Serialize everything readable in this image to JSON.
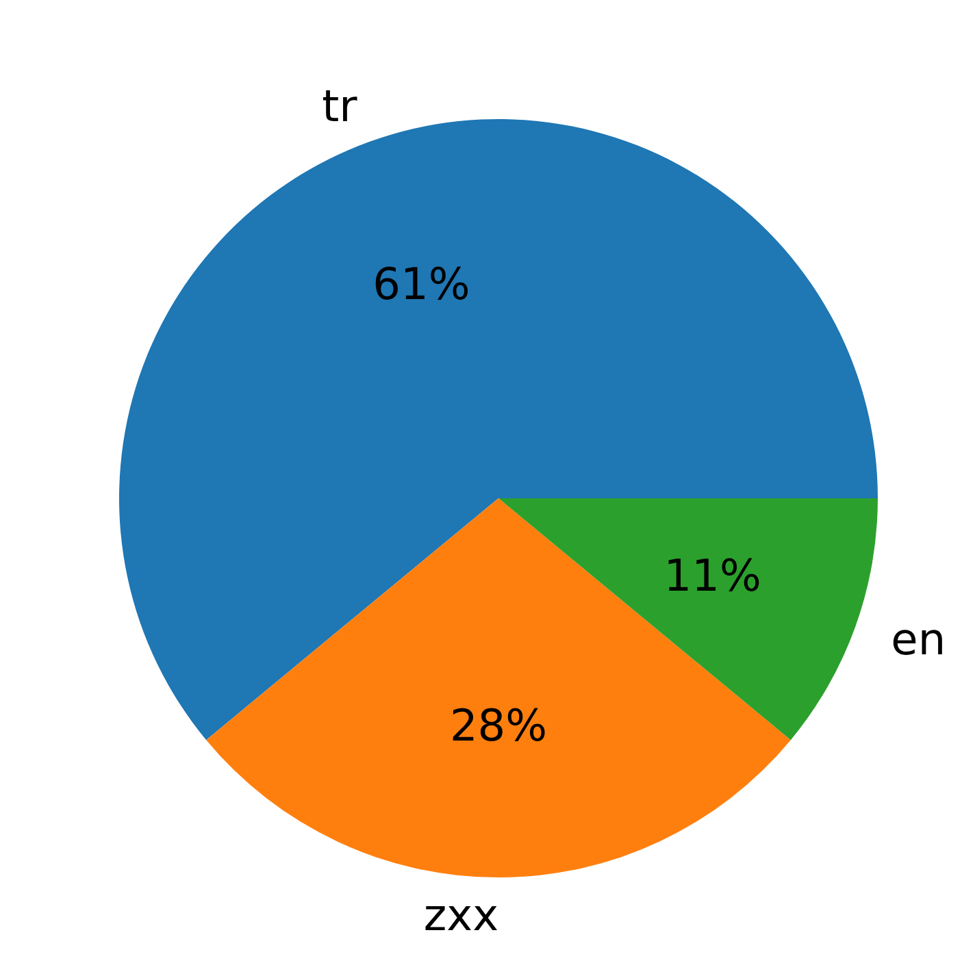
{
  "chart_data": {
    "type": "pie",
    "categories": [
      "tr",
      "zxx",
      "en"
    ],
    "values": [
      61,
      28,
      11
    ],
    "colors": [
      "#1f77b4",
      "#ff7f0e",
      "#2ca02c"
    ],
    "value_labels": [
      "61%",
      "28%",
      "11%"
    ]
  }
}
